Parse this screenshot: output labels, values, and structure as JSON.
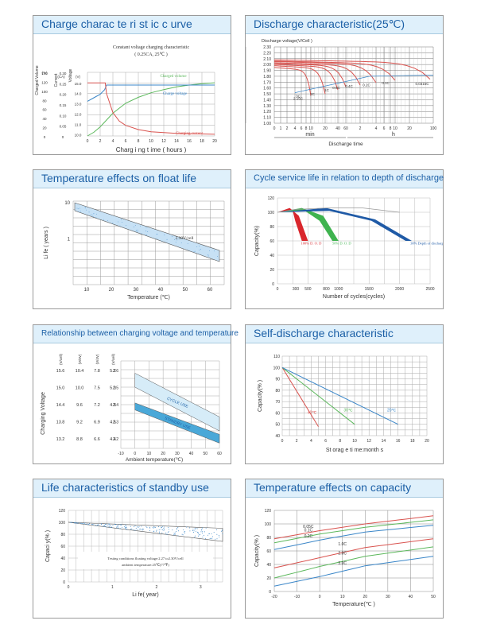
{
  "charts": [
    {
      "title": "Charge charac te ri st ic c urve",
      "subtitle": "Constant voltage charging characteristic",
      "subtitle2": "( 0.25CA, 25℃ )",
      "xlabel": "Charg i ng  t ime  ( hours )",
      "ylabel_left": "Charged Volume",
      "ylabel_left2": "Current",
      "ylabel_right": "Voltage",
      "unit_pct": "(%)",
      "unit_ca": "(CA)",
      "unit_v": "(V)",
      "x_ticks": [
        "0",
        "2",
        "4",
        "6",
        "8",
        "10",
        "12",
        "14",
        "16",
        "18",
        "20"
      ],
      "y_pct_ticks": [
        "140",
        "120",
        "100",
        "80",
        "60",
        "40",
        "20",
        "0"
      ],
      "y_ca_ticks": [
        "0.30",
        "0.25",
        "0.20",
        "0.15",
        "0.10",
        "0.05",
        "0"
      ],
      "y_v_ticks": [
        "15.0",
        "14.0",
        "13.0",
        "12.0",
        "11.0",
        "10.0"
      ],
      "series_labels": [
        "Charged volume",
        "Charge voltage",
        "Charging current"
      ]
    },
    {
      "title": "Discharge characteristic(25℃)",
      "ylabel": "Discharge voltage(V/Cell )",
      "y_ticks": [
        "2.30",
        "2.20",
        "2.10",
        "2.00",
        "1.90",
        "1.80",
        "1.70",
        "1.60",
        "1.50",
        "1.40",
        "1.30",
        "1.20",
        "1.10",
        "1.00"
      ],
      "x_ticks": [
        "0",
        "1",
        "2",
        "4",
        "6",
        "8",
        "10",
        "20",
        "40",
        "60",
        "2",
        "4",
        "6",
        "8",
        "10",
        "20",
        "100"
      ],
      "unit_min": "min",
      "unit_h": "h",
      "xlabel": "Discharge time",
      "rate_labels": [
        "3C",
        "2C",
        "1C",
        "0.6C",
        "0.4C",
        "0.2C",
        "0.1C",
        "0.0315C",
        "2.15C"
      ]
    },
    {
      "title": "Temperature effects on float life",
      "ylabel": "Li fe ( years )",
      "xlabel": "Temperature (℃)",
      "y_ticks": [
        "10",
        "1"
      ],
      "x_ticks": [
        "10",
        "20",
        "30",
        "40",
        "50",
        "60"
      ],
      "annotation": "2.30V/cell"
    },
    {
      "title": "Cycle service life in relation to depth of discharge",
      "ylabel": "Capacity(%)",
      "xlabel": "Number of cycles(cycles)",
      "y_ticks": [
        "120",
        "100",
        "80",
        "60",
        "40",
        "20",
        "0"
      ],
      "x_ticks": [
        "0",
        "300",
        "500",
        "800",
        "1000",
        "1500",
        "2000",
        "2500"
      ],
      "series_labels": [
        "100% D. O. D",
        "50% D. O. D",
        "30% Depth of discharge"
      ]
    },
    {
      "title": "Relationship between charging voltage and temperature",
      "ylabel": "Charging Voltage",
      "xlabel": "Ambient temperature(℃)",
      "col_heads": [
        "(V/cell)",
        "(V/6V)",
        "(V/4V)",
        "(V/cell)"
      ],
      "col1": [
        "15.6",
        "15.0",
        "14.4",
        "13.8",
        "13.2"
      ],
      "col2": [
        "10.4",
        "10.0",
        "9.6",
        "9.2",
        "8.8"
      ],
      "col3": [
        "7.8",
        "7.5",
        "7.2",
        "6.9",
        "6.6"
      ],
      "col4": [
        "5.2",
        "5.0",
        "4.8",
        "4.6",
        "4.4"
      ],
      "y_ticks": [
        "2.6",
        "2.5",
        "2.4",
        "2.3",
        "2.2"
      ],
      "x_ticks": [
        "-10",
        "0",
        "10",
        "20",
        "30",
        "40",
        "50",
        "60"
      ],
      "band_labels": [
        "CYCLE USE",
        "STANDBY USE"
      ]
    },
    {
      "title": "Self-discharge characteristic",
      "ylabel": "Capacity(% )",
      "xlabel": "St orag e ti me:month s",
      "y_ticks": [
        "110",
        "100",
        "90",
        "80",
        "70",
        "60",
        "50",
        "40"
      ],
      "x_ticks": [
        "0",
        "2",
        "4",
        "6",
        "8",
        "10",
        "12",
        "14",
        "16",
        "18",
        "20"
      ],
      "series_labels": [
        "40℃",
        "30℃",
        "20℃"
      ]
    },
    {
      "title": "Life characteristics of standby use",
      "ylabel": "Capaci y(% )",
      "xlabel": "Li fe( year)",
      "y_ticks": [
        "120",
        "100",
        "80",
        "60",
        "40",
        "20",
        "0"
      ],
      "x_ticks": [
        "0",
        "1",
        "2",
        "3"
      ],
      "note1": "Testing conditions floating voltage:2.27 to2.30V/cell",
      "note2": "ambient temperature:25℃(77℉)"
    },
    {
      "title": "Temperature effects on capacity",
      "ylabel": "Capacity(% )",
      "xlabel": "Temperature(℃ )",
      "y_ticks": [
        "120",
        "100",
        "80",
        "60",
        "40",
        "20",
        "0"
      ],
      "x_ticks": [
        "-20",
        "-10",
        "0",
        "10",
        "20",
        "30",
        "40",
        "50"
      ],
      "series_labels": [
        "0.05C",
        "0.1C",
        "0.2C",
        "1.0C",
        "2.0C",
        "3.0C"
      ]
    }
  ],
  "chart_data": [
    {
      "type": "line",
      "title": "Charge charac te ri st ic c urve",
      "xlabel": "Charg i ng  t ime  ( hours )",
      "xlim": [
        0,
        20
      ],
      "series": [
        {
          "name": "Charged volume",
          "axis": "%",
          "x": [
            0,
            1,
            2,
            3,
            4,
            6,
            8,
            10,
            12,
            14,
            16,
            18,
            20
          ],
          "y": [
            0,
            8,
            20,
            35,
            50,
            72,
            85,
            95,
            102,
            108,
            112,
            115,
            117
          ]
        },
        {
          "name": "Charge voltage",
          "axis": "V",
          "x": [
            0,
            1,
            2,
            2.7,
            3,
            4,
            6,
            10,
            20
          ],
          "y": [
            13.0,
            13.3,
            13.6,
            14.0,
            14.4,
            14.4,
            14.4,
            14.4,
            14.4
          ]
        },
        {
          "name": "Charging current",
          "axis": "CA",
          "x": [
            0,
            2.8,
            3,
            4,
            5,
            6,
            8,
            10,
            14,
            20
          ],
          "y": [
            0.25,
            0.25,
            0.2,
            0.11,
            0.07,
            0.05,
            0.03,
            0.02,
            0.012,
            0.008
          ]
        }
      ]
    },
    {
      "type": "line",
      "title": "Discharge characteristic(25℃)",
      "ylabel": "Discharge voltage(V/Cell )",
      "ylim": [
        1.0,
        2.3
      ],
      "series": [
        {
          "name": "3C",
          "end_voltage": 1.5
        },
        {
          "name": "2C",
          "end_voltage": 1.55
        },
        {
          "name": "1C",
          "end_voltage": 1.65
        },
        {
          "name": "0.6C",
          "end_voltage": 1.7
        },
        {
          "name": "0.4C",
          "end_voltage": 1.72
        },
        {
          "name": "0.2C",
          "end_voltage": 1.75
        },
        {
          "name": "0.1C",
          "end_voltage": 1.78
        },
        {
          "name": "0.0315C",
          "end_voltage": 1.8
        }
      ]
    },
    {
      "type": "line",
      "title": "Temperature effects on float life",
      "xlabel": "Temperature (℃)",
      "ylabel": "Li fe ( years )",
      "yscale": "log",
      "series": [
        {
          "name": "2.30V/cell",
          "x": [
            5,
            60
          ],
          "y_upper": [
            9.0,
            0.45
          ],
          "y_lower": [
            7.0,
            0.3
          ]
        }
      ]
    },
    {
      "type": "line",
      "title": "Cycle service life in relation to depth of discharge",
      "xlabel": "Number of cycles(cycles)",
      "ylabel": "Capacity(%)",
      "ylim": [
        0,
        120
      ],
      "xlim": [
        0,
        2500
      ],
      "series": [
        {
          "name": "100% D. O. D",
          "x": [
            0,
            200,
            350,
            500
          ],
          "y": [
            100,
            106,
            95,
            60
          ]
        },
        {
          "name": "50% D. O. D",
          "x": [
            0,
            400,
            750,
            1000
          ],
          "y": [
            100,
            106,
            95,
            60
          ]
        },
        {
          "name": "30% Depth of discharge",
          "x": [
            0,
            800,
            1600,
            2200
          ],
          "y": [
            100,
            106,
            90,
            60
          ]
        }
      ]
    },
    {
      "type": "area",
      "title": "Relationship between charging voltage and temperature",
      "xlabel": "Ambient temperature(℃)",
      "ylabel": "Charging Voltage",
      "xlim": [
        -10,
        60
      ],
      "ylim": [
        2.15,
        2.65
      ],
      "series": [
        {
          "name": "CYCLE USE",
          "x": [
            0,
            60
          ],
          "y_upper": [
            2.58,
            2.33
          ],
          "y_lower": [
            2.5,
            2.25
          ]
        },
        {
          "name": "STANDBY USE",
          "x": [
            0,
            60
          ],
          "y_upper": [
            2.41,
            2.23
          ],
          "y_lower": [
            2.37,
            2.18
          ]
        }
      ]
    },
    {
      "type": "line",
      "title": "Self-discharge characteristic",
      "xlabel": "St orag e ti me:month s",
      "ylabel": "Capacity(% )",
      "xlim": [
        0,
        20
      ],
      "ylim": [
        40,
        110
      ],
      "series": [
        {
          "name": "40℃",
          "x": [
            0,
            5
          ],
          "y": [
            100,
            48
          ]
        },
        {
          "name": "30℃",
          "x": [
            0,
            10
          ],
          "y": [
            100,
            50
          ]
        },
        {
          "name": "20℃",
          "x": [
            0,
            16
          ],
          "y": [
            100,
            50
          ]
        }
      ]
    },
    {
      "type": "area",
      "title": "Life characteristics of standby use",
      "xlabel": "Li fe( year)",
      "ylabel": "Capaci y(% )",
      "xlim": [
        0,
        3.5
      ],
      "ylim": [
        0,
        120
      ],
      "series": [
        {
          "name": "band",
          "x": [
            0,
            3.5
          ],
          "y_upper": [
            100,
            90
          ],
          "y_lower": [
            100,
            68
          ]
        }
      ]
    },
    {
      "type": "line",
      "title": "Temperature effects on capacity",
      "xlabel": "Temperature(℃ )",
      "ylabel": "Capacity(% )",
      "xlim": [
        -20,
        50
      ],
      "ylim": [
        0,
        120
      ],
      "series": [
        {
          "name": "0.05C",
          "x": [
            -20,
            0,
            20,
            50
          ],
          "y": [
            78,
            90,
            100,
            112
          ]
        },
        {
          "name": "0.1C",
          "x": [
            -20,
            0,
            20,
            50
          ],
          "y": [
            72,
            85,
            95,
            106
          ]
        },
        {
          "name": "0.2C",
          "x": [
            -20,
            0,
            20,
            50
          ],
          "y": [
            62,
            76,
            88,
            98
          ]
        },
        {
          "name": "1.0C",
          "x": [
            -20,
            0,
            20,
            50
          ],
          "y": [
            35,
            50,
            65,
            78
          ]
        },
        {
          "name": "2.0C",
          "x": [
            -20,
            0,
            20,
            50
          ],
          "y": [
            20,
            37,
            52,
            66
          ]
        },
        {
          "name": "3.0C",
          "x": [
            -20,
            0,
            20,
            50
          ],
          "y": [
            8,
            22,
            38,
            52
          ]
        }
      ]
    }
  ]
}
